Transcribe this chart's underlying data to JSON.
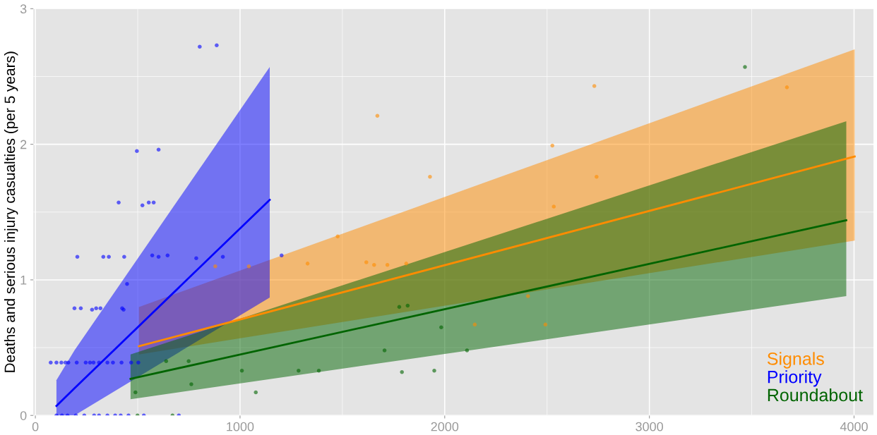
{
  "chart_data": {
    "type": "scatter",
    "ylabel": "Deaths and serious injury casualties (per 5 years)",
    "xlim": [
      -10,
      4095
    ],
    "ylim": [
      0,
      3
    ],
    "xticks": [
      0,
      1000,
      2000,
      3000,
      4000
    ],
    "yticks": [
      0,
      1,
      2,
      3
    ],
    "grid": true,
    "legend": "bottom right",
    "series": [
      {
        "marker": "circle",
        "color": "#0000ff",
        "x": [
          803,
          886,
          496,
          602,
          407,
          523,
          554,
          578,
          205,
          332,
          359,
          434,
          571,
          602,
          646,
          786,
          916,
          1203,
          448,
          191,
          222,
          277,
          297,
          318,
          424,
          431,
          75,
          103,
          127,
          147,
          161,
          202,
          246,
          267,
          284,
          311,
          352,
          379,
          421,
          468,
          503,
          103,
          130,
          157,
          198,
          239,
          287,
          311,
          352,
          390,
          417,
          455,
          530,
          701
        ],
        "values": [
          2.72,
          2.73,
          1.95,
          1.96,
          1.57,
          1.55,
          1.57,
          1.57,
          1.17,
          1.17,
          1.17,
          1.17,
          1.18,
          1.17,
          1.18,
          1.16,
          1.17,
          1.18,
          0.97,
          0.79,
          0.79,
          0.78,
          0.79,
          0.79,
          0.79,
          0.78,
          0.39,
          0.39,
          0.39,
          0.39,
          0.39,
          0.39,
          0.39,
          0.39,
          0.39,
          0.39,
          0.39,
          0.39,
          0.39,
          0.39,
          0.39,
          0,
          0,
          0,
          0,
          0,
          0,
          0,
          0,
          0,
          0,
          0,
          0,
          0
        ]
      },
      {
        "marker": "circle",
        "color": "#ff8c00",
        "x": [
          1671,
          1928,
          2526,
          2533,
          2731,
          2742,
          1477,
          1617,
          1655,
          1720,
          1812,
          2147,
          2492,
          2407,
          1330,
          879,
          1043,
          3672
        ],
        "values": [
          2.21,
          1.76,
          1.99,
          1.54,
          2.43,
          1.76,
          1.32,
          1.13,
          1.11,
          1.11,
          1.12,
          0.67,
          0.67,
          0.88,
          1.12,
          1.1,
          1.1,
          2.42
        ]
      },
      {
        "marker": "circle",
        "color": "#006400",
        "x": [
          3467,
          1778,
          1819,
          1983,
          1706,
          1791,
          1949,
          2109,
          1385,
          1009,
          1286,
          1077,
          762,
          489,
          499,
          670,
          749,
          639
        ],
        "values": [
          2.57,
          0.8,
          0.81,
          0.65,
          0.48,
          0.32,
          0.33,
          0.48,
          0.33,
          0.33,
          0.33,
          0.17,
          0.23,
          0.17,
          0,
          0,
          0.4,
          0.4
        ]
      },
      {
        "type": "line",
        "name": "Signals",
        "color": "#ff8c00",
        "x": [
          506,
          4003
        ],
        "values": [
          0.51,
          1.91
        ],
        "lower": [
          0.45,
          1.29
        ],
        "upper": [
          0.8,
          2.7
        ]
      },
      {
        "type": "line",
        "name": "Priority",
        "color": "#0000ff",
        "x": [
          103,
          191,
          1145
        ],
        "values": [
          0.07,
          0.2,
          1.59
        ],
        "lower": [
          0,
          0,
          0.87
        ],
        "upper": [
          0.26,
          0.48,
          2.57
        ]
      },
      {
        "type": "line",
        "name": "Roundabout",
        "color": "#006400",
        "x": [
          465,
          3962
        ],
        "values": [
          0.27,
          1.44
        ],
        "lower": [
          0.12,
          0.88
        ],
        "upper": [
          0.45,
          2.17
        ]
      }
    ]
  }
}
